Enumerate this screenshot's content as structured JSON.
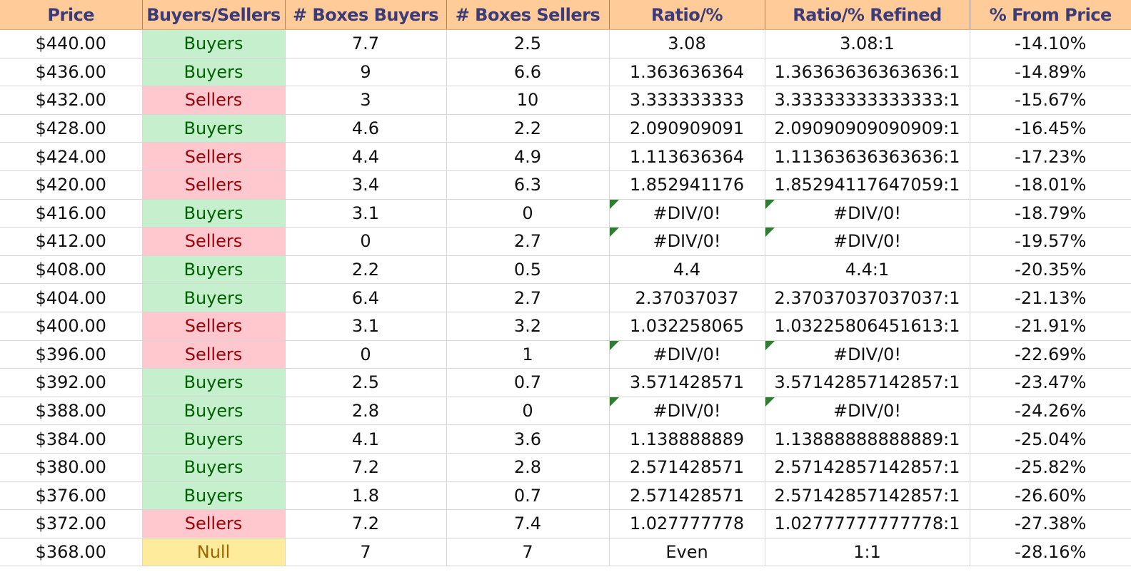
{
  "columns": [
    "Price",
    "Buyers/Sellers",
    "# Boxes Buyers",
    "# Boxes Sellers",
    "Ratio/%",
    "Ratio/% Refined",
    "% From Price"
  ],
  "colors": {
    "header_bg": "#ffcc99",
    "header_text": "#3b3b7a",
    "buyers_bg": "#c6efce",
    "buyers_text": "#006100",
    "sellers_bg": "#ffc7ce",
    "sellers_text": "#9c0006",
    "null_bg": "#ffeb9c",
    "null_text": "#9c6500",
    "error_flag": "#2e7d32"
  },
  "rows": [
    {
      "price": "$440.00",
      "bs": "Buyers",
      "buyers": "7.7",
      "sellers": "2.5",
      "ratio": "3.08",
      "refined": "3.08:1",
      "pct": "-14.10%",
      "err": false
    },
    {
      "price": "$436.00",
      "bs": "Buyers",
      "buyers": "9",
      "sellers": "6.6",
      "ratio": "1.363636364",
      "refined": "1.36363636363636:1",
      "pct": "-14.89%",
      "err": false
    },
    {
      "price": "$432.00",
      "bs": "Sellers",
      "buyers": "3",
      "sellers": "10",
      "ratio": "3.333333333",
      "refined": "3.33333333333333:1",
      "pct": "-15.67%",
      "err": false
    },
    {
      "price": "$428.00",
      "bs": "Buyers",
      "buyers": "4.6",
      "sellers": "2.2",
      "ratio": "2.090909091",
      "refined": "2.09090909090909:1",
      "pct": "-16.45%",
      "err": false
    },
    {
      "price": "$424.00",
      "bs": "Sellers",
      "buyers": "4.4",
      "sellers": "4.9",
      "ratio": "1.113636364",
      "refined": "1.11363636363636:1",
      "pct": "-17.23%",
      "err": false
    },
    {
      "price": "$420.00",
      "bs": "Sellers",
      "buyers": "3.4",
      "sellers": "6.3",
      "ratio": "1.852941176",
      "refined": "1.85294117647059:1",
      "pct": "-18.01%",
      "err": false
    },
    {
      "price": "$416.00",
      "bs": "Buyers",
      "buyers": "3.1",
      "sellers": "0",
      "ratio": "#DIV/0!",
      "refined": "#DIV/0!",
      "pct": "-18.79%",
      "err": true
    },
    {
      "price": "$412.00",
      "bs": "Sellers",
      "buyers": "0",
      "sellers": "2.7",
      "ratio": "#DIV/0!",
      "refined": "#DIV/0!",
      "pct": "-19.57%",
      "err": true
    },
    {
      "price": "$408.00",
      "bs": "Buyers",
      "buyers": "2.2",
      "sellers": "0.5",
      "ratio": "4.4",
      "refined": "4.4:1",
      "pct": "-20.35%",
      "err": false
    },
    {
      "price": "$404.00",
      "bs": "Buyers",
      "buyers": "6.4",
      "sellers": "2.7",
      "ratio": "2.37037037",
      "refined": "2.37037037037037:1",
      "pct": "-21.13%",
      "err": false
    },
    {
      "price": "$400.00",
      "bs": "Sellers",
      "buyers": "3.1",
      "sellers": "3.2",
      "ratio": "1.032258065",
      "refined": "1.03225806451613:1",
      "pct": "-21.91%",
      "err": false
    },
    {
      "price": "$396.00",
      "bs": "Sellers",
      "buyers": "0",
      "sellers": "1",
      "ratio": "#DIV/0!",
      "refined": "#DIV/0!",
      "pct": "-22.69%",
      "err": true
    },
    {
      "price": "$392.00",
      "bs": "Buyers",
      "buyers": "2.5",
      "sellers": "0.7",
      "ratio": "3.571428571",
      "refined": "3.57142857142857:1",
      "pct": "-23.47%",
      "err": false
    },
    {
      "price": "$388.00",
      "bs": "Buyers",
      "buyers": "2.8",
      "sellers": "0",
      "ratio": "#DIV/0!",
      "refined": "#DIV/0!",
      "pct": "-24.26%",
      "err": true
    },
    {
      "price": "$384.00",
      "bs": "Buyers",
      "buyers": "4.1",
      "sellers": "3.6",
      "ratio": "1.138888889",
      "refined": "1.13888888888889:1",
      "pct": "-25.04%",
      "err": false
    },
    {
      "price": "$380.00",
      "bs": "Buyers",
      "buyers": "7.2",
      "sellers": "2.8",
      "ratio": "2.571428571",
      "refined": "2.57142857142857:1",
      "pct": "-25.82%",
      "err": false
    },
    {
      "price": "$376.00",
      "bs": "Buyers",
      "buyers": "1.8",
      "sellers": "0.7",
      "ratio": "2.571428571",
      "refined": "2.57142857142857:1",
      "pct": "-26.60%",
      "err": false
    },
    {
      "price": "$372.00",
      "bs": "Sellers",
      "buyers": "7.2",
      "sellers": "7.4",
      "ratio": "1.027777778",
      "refined": "1.02777777777778:1",
      "pct": "-27.38%",
      "err": false
    },
    {
      "price": "$368.00",
      "bs": "Null",
      "buyers": "7",
      "sellers": "7",
      "ratio": "Even",
      "refined": "1:1",
      "pct": "-28.16%",
      "err": false
    }
  ]
}
